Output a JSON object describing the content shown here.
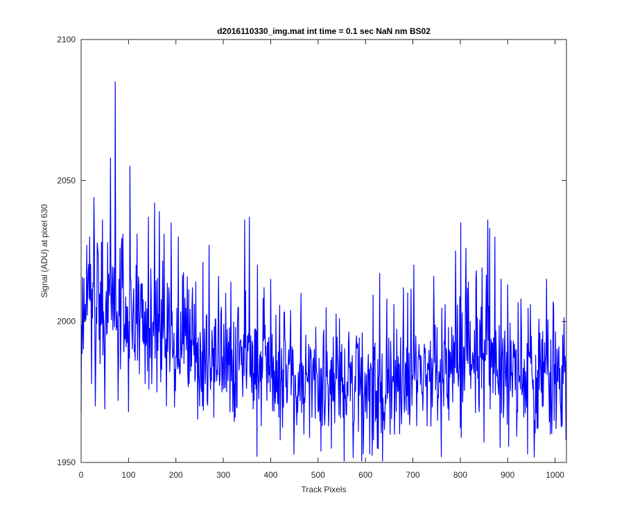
{
  "chart_data": {
    "type": "line",
    "title": "d2016110330_img.mat int time = 0.1 sec  NaN nm BS02",
    "xlabel": "Track Pixels",
    "ylabel": "Signal (ADU) at pixel 630",
    "xlim": [
      0,
      1024
    ],
    "ylim": [
      1950,
      2100
    ],
    "xticks": [
      0,
      100,
      200,
      300,
      400,
      500,
      600,
      700,
      800,
      900,
      1000
    ],
    "yticks": [
      1950,
      2000,
      2050,
      2100
    ],
    "grid": false,
    "line_color": "#0000ff",
    "n_points": 1024,
    "trend": [
      [
        0,
        2005
      ],
      [
        40,
        2005
      ],
      [
        80,
        2003
      ],
      [
        150,
        1999
      ],
      [
        250,
        1990
      ],
      [
        350,
        1985
      ],
      [
        450,
        1979
      ],
      [
        550,
        1976
      ],
      [
        650,
        1979
      ],
      [
        750,
        1984
      ],
      [
        850,
        1988
      ],
      [
        950,
        1982
      ],
      [
        1023,
        1978
      ]
    ],
    "noise_std": 11,
    "peaks": [
      [
        0,
        1968
      ],
      [
        8,
        2001
      ],
      [
        12,
        2027
      ],
      [
        18,
        2030
      ],
      [
        22,
        1978
      ],
      [
        27,
        2044
      ],
      [
        30,
        1970
      ],
      [
        35,
        2026
      ],
      [
        40,
        1985
      ],
      [
        45,
        2036
      ],
      [
        50,
        1969
      ],
      [
        56,
        2028
      ],
      [
        62,
        2058
      ],
      [
        67,
        1997
      ],
      [
        72,
        2085
      ],
      [
        78,
        1972
      ],
      [
        82,
        2026
      ],
      [
        88,
        2031
      ],
      [
        95,
        1991
      ],
      [
        100,
        1968
      ],
      [
        103,
        2055
      ],
      [
        110,
        2007
      ],
      [
        118,
        2031
      ],
      [
        126,
        2013
      ],
      [
        135,
        1978
      ],
      [
        142,
        2037
      ],
      [
        150,
        1990
      ],
      [
        155,
        2042
      ],
      [
        160,
        1975
      ],
      [
        165,
        2039
      ],
      [
        170,
        1983
      ],
      [
        175,
        2031
      ],
      [
        180,
        1970
      ],
      [
        185,
        2012
      ],
      [
        190,
        2035
      ],
      [
        198,
        1983
      ],
      [
        205,
        2030
      ],
      [
        212,
        1987
      ],
      [
        220,
        1995
      ],
      [
        228,
        1978
      ],
      [
        235,
        2012
      ],
      [
        242,
        2014
      ],
      [
        250,
        1970
      ],
      [
        257,
        2021
      ],
      [
        262,
        1978
      ],
      [
        270,
        2027
      ],
      [
        280,
        1966
      ],
      [
        290,
        2016
      ],
      [
        300,
        1976
      ],
      [
        305,
        2010
      ],
      [
        310,
        1979
      ],
      [
        316,
        2014
      ],
      [
        320,
        1968
      ],
      [
        325,
        1966
      ],
      [
        332,
        2005
      ],
      [
        340,
        1981
      ],
      [
        345,
        2036
      ],
      [
        350,
        1985
      ],
      [
        355,
        2037
      ],
      [
        365,
        1972
      ],
      [
        372,
        2020
      ],
      [
        380,
        1963
      ],
      [
        386,
        2012
      ],
      [
        392,
        1972
      ],
      [
        400,
        2015
      ],
      [
        410,
        1971
      ],
      [
        420,
        1958
      ],
      [
        428,
        2003
      ],
      [
        436,
        1981
      ],
      [
        445,
        1991
      ],
      [
        450,
        1966
      ],
      [
        458,
        1982
      ],
      [
        464,
        2010
      ],
      [
        470,
        1960
      ],
      [
        480,
        1992
      ],
      [
        486,
        1982
      ],
      [
        495,
        1998
      ],
      [
        500,
        1968
      ],
      [
        506,
        1954
      ],
      [
        512,
        1997
      ],
      [
        520,
        1978
      ],
      [
        528,
        1955
      ],
      [
        536,
        1978
      ],
      [
        545,
        2001
      ],
      [
        553,
        1966
      ],
      [
        558,
        1974
      ],
      [
        567,
        1985
      ],
      [
        575,
        1964
      ],
      [
        580,
        1991
      ],
      [
        585,
        1961
      ],
      [
        593,
        1996
      ],
      [
        600,
        1968
      ],
      [
        608,
        1983
      ],
      [
        617,
        1958
      ],
      [
        625,
        1955
      ],
      [
        630,
        2017
      ],
      [
        638,
        1965
      ],
      [
        645,
        2008
      ],
      [
        652,
        1960
      ],
      [
        660,
        2006
      ],
      [
        668,
        1975
      ],
      [
        675,
        1971
      ],
      [
        680,
        2012
      ],
      [
        690,
        1967
      ],
      [
        695,
        1985
      ],
      [
        702,
        2020
      ],
      [
        708,
        1963
      ],
      [
        715,
        1988
      ],
      [
        724,
        1992
      ],
      [
        730,
        1963
      ],
      [
        737,
        1993
      ],
      [
        744,
        2016
      ],
      [
        752,
        1965
      ],
      [
        760,
        1952
      ],
      [
        768,
        2006
      ],
      [
        776,
        1965
      ],
      [
        782,
        1998
      ],
      [
        790,
        2025
      ],
      [
        796,
        1977
      ],
      [
        801,
        2035
      ],
      [
        806,
        1978
      ],
      [
        812,
        2026
      ],
      [
        820,
        1981
      ],
      [
        826,
        1989
      ],
      [
        834,
        2018
      ],
      [
        840,
        1968
      ],
      [
        846,
        2019
      ],
      [
        852,
        1986
      ],
      [
        858,
        2036
      ],
      [
        862,
        2033
      ],
      [
        868,
        1992
      ],
      [
        873,
        2030
      ],
      [
        880,
        1977
      ],
      [
        886,
        2015
      ],
      [
        892,
        1971
      ],
      [
        900,
        2013
      ],
      [
        908,
        1981
      ],
      [
        914,
        1992
      ],
      [
        921,
        1968
      ],
      [
        928,
        2008
      ],
      [
        936,
        1979
      ],
      [
        942,
        1953
      ],
      [
        948,
        2006
      ],
      [
        955,
        1969
      ],
      [
        962,
        1962
      ],
      [
        968,
        1996
      ],
      [
        975,
        1970
      ],
      [
        982,
        2015
      ],
      [
        990,
        1960
      ],
      [
        996,
        2007
      ],
      [
        1002,
        1962
      ],
      [
        1008,
        1991
      ],
      [
        1015,
        1963
      ],
      [
        1020,
        1982
      ],
      [
        1023,
        1958
      ]
    ]
  }
}
